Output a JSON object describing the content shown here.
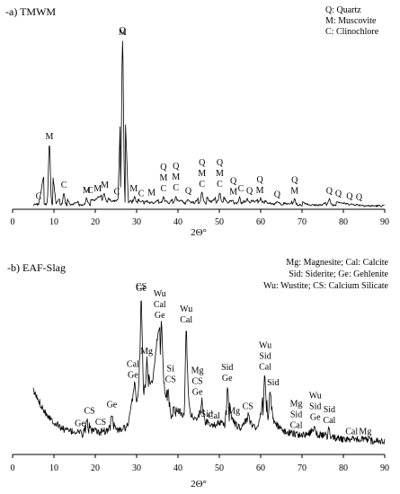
{
  "chart_data": [
    {
      "type": "line",
      "title": "-a) TMWM",
      "xlabel": "2Θ°",
      "ylabel": "",
      "xlim": [
        0,
        90
      ],
      "xticks": [
        0,
        10,
        20,
        30,
        40,
        50,
        60,
        70,
        80,
        90
      ],
      "grid": false,
      "legend_position": "top-right",
      "legend": [
        "Q: Quartz",
        "M: Muscovite",
        "C: Clinochlore"
      ],
      "series": [
        {
          "x": [
            5,
            6.3,
            8.9,
            10.5,
            12.4,
            14,
            17.9,
            19.8,
            20.9,
            22.1,
            24,
            25.5,
            26.6,
            28,
            29.5,
            31,
            32.5,
            34.2,
            36.5,
            37.8,
            39.5,
            40.2,
            42.5,
            44,
            45.8,
            48,
            50.1,
            52,
            54.9,
            55.3,
            56.7,
            58.5,
            60,
            62,
            64,
            67,
            68.2,
            72,
            75,
            76.6,
            80,
            81.5,
            83.8,
            86,
            90
          ],
          "y": [
            2,
            2.5,
            38,
            3,
            9,
            2,
            6,
            4.5,
            7,
            9,
            4,
            5,
            100,
            3.5,
            7,
            4,
            4.5,
            3,
            7,
            3,
            7.5,
            4,
            5.5,
            3,
            9.5,
            3.5,
            9.5,
            3.5,
            7,
            3,
            5.5,
            4,
            6,
            3,
            3.5,
            2.5,
            5.5,
            2,
            2,
            5.5,
            3,
            2.5,
            2,
            1.5,
            1.5
          ]
        }
      ],
      "annotations": [
        {
          "x": 6.3,
          "labels": [
            "C"
          ]
        },
        {
          "x": 8.9,
          "labels": [
            "M"
          ]
        },
        {
          "x": 12.4,
          "labels": [
            "C"
          ]
        },
        {
          "x": 17.9,
          "labels": [
            "M"
          ]
        },
        {
          "x": 18.8,
          "labels": [
            "C"
          ]
        },
        {
          "x": 20.6,
          "labels": [
            "M"
          ]
        },
        {
          "x": 22.3,
          "labels": [
            "M"
          ]
        },
        {
          "x": 25.2,
          "labels": [
            "C"
          ]
        },
        {
          "x": 26.6,
          "labels": [
            "Q",
            "M"
          ]
        },
        {
          "x": 29.3,
          "labels": [
            "M"
          ]
        },
        {
          "x": 31.1,
          "labels": [
            "C"
          ]
        },
        {
          "x": 33.6,
          "labels": [
            "M"
          ]
        },
        {
          "x": 36.5,
          "labels": [
            "Q",
            "M",
            "C"
          ]
        },
        {
          "x": 39.5,
          "labels": [
            "Q",
            "M",
            "C"
          ]
        },
        {
          "x": 42.5,
          "labels": [
            "Q"
          ]
        },
        {
          "x": 45.8,
          "labels": [
            "Q",
            "M",
            "C"
          ]
        },
        {
          "x": 50.1,
          "labels": [
            "Q",
            "M",
            "C"
          ]
        },
        {
          "x": 53.4,
          "labels": [
            "Q",
            "M"
          ]
        },
        {
          "x": 55.2,
          "labels": [
            "C"
          ]
        },
        {
          "x": 57.3,
          "labels": [
            "Q"
          ]
        },
        {
          "x": 59.8,
          "labels": [
            "Q",
            "M"
          ]
        },
        {
          "x": 64,
          "labels": [
            "Q"
          ]
        },
        {
          "x": 68.2,
          "labels": [
            "Q",
            "M"
          ]
        },
        {
          "x": 76.6,
          "labels": [
            "Q"
          ]
        },
        {
          "x": 78.8,
          "labels": [
            "Q"
          ]
        },
        {
          "x": 81.5,
          "labels": [
            "Q"
          ]
        },
        {
          "x": 83.8,
          "labels": [
            "Q"
          ]
        }
      ]
    },
    {
      "type": "line",
      "title": "-b) EAF-Slag",
      "xlabel": "2Θ°",
      "ylabel": "",
      "xlim": [
        0,
        90
      ],
      "xticks": [
        0,
        10,
        20,
        30,
        40,
        50,
        60,
        70,
        80,
        90
      ],
      "grid": false,
      "legend_position": "top-right",
      "legend": [
        "Mg: Magnesite; Cal: Calcite",
        "Sid: Siderite;      Ge: Gehlenite",
        "Wu: Wustite;   CS: Calcium Silicate"
      ],
      "series": [
        {
          "x": [
            5,
            6,
            8,
            10,
            12,
            14,
            16,
            17,
            18,
            19,
            20,
            21,
            22,
            23,
            24,
            25,
            26,
            27,
            28,
            29,
            29.5,
            30,
            30.5,
            31.1,
            31.7,
            32.5,
            33.3,
            34,
            34.6,
            35.2,
            36,
            36.5,
            37,
            37.6,
            38.3,
            39,
            40,
            41,
            41.5,
            42,
            42.5,
            43,
            44,
            45,
            45.8,
            46.5,
            47.5,
            48.5,
            49.5,
            50.5,
            51.3,
            52,
            53,
            54,
            55,
            56.2,
            57,
            58,
            59,
            60,
            61,
            61.8,
            62.3,
            63,
            64,
            65,
            66,
            67,
            68,
            69,
            70,
            71,
            72,
            73,
            73.6,
            74.5,
            75.5,
            76.5,
            77.5,
            78.5,
            80,
            82,
            84,
            85.5,
            87,
            88.5,
            90
          ],
          "y": [
            40,
            35,
            26,
            20,
            16,
            14,
            14,
            12,
            22,
            14,
            15,
            13,
            15,
            14,
            26,
            15,
            15,
            16,
            18,
            35,
            45,
            33,
            40,
            100,
            35,
            60,
            45,
            48,
            65,
            78,
            83,
            48,
            35,
            42,
            22,
            30,
            28,
            25,
            23,
            80,
            40,
            25,
            22,
            24,
            34,
            20,
            20,
            18,
            19,
            20,
            17,
            43,
            22,
            18,
            16,
            20,
            25,
            18,
            16,
            24,
            50,
            22,
            40,
            22,
            18,
            15,
            14,
            13,
            13,
            12,
            12,
            12,
            13,
            18,
            12,
            12,
            11,
            16,
            10,
            10,
            9,
            9,
            9,
            9,
            8,
            8,
            8
          ]
        }
      ],
      "annotations": [
        {
          "x": 16.3,
          "labels": [
            "Ge"
          ]
        },
        {
          "x": 18.6,
          "labels": [
            "CS"
          ]
        },
        {
          "x": 21.3,
          "labels": [
            "CS"
          ]
        },
        {
          "x": 24.0,
          "labels": [
            "Ge"
          ]
        },
        {
          "x": 29.1,
          "labels": [
            "Cal",
            "Ge"
          ]
        },
        {
          "x": 31.1,
          "labels": [
            "CS",
            "Ge"
          ]
        },
        {
          "x": 32.4,
          "labels": [
            "Mg"
          ]
        },
        {
          "x": 35.6,
          "labels": [
            "Wu",
            "Cal",
            "Ge"
          ]
        },
        {
          "x": 42.0,
          "labels": [
            "Wu",
            "Cal"
          ]
        },
        {
          "x": 38.2,
          "labels": [
            "Si",
            "CS"
          ]
        },
        {
          "x": 44.7,
          "labels": [
            "Mg",
            "CS",
            "Ge"
          ]
        },
        {
          "x": 47.0,
          "labels": [
            "Sid"
          ]
        },
        {
          "x": 48.7,
          "labels": [
            "Cal"
          ]
        },
        {
          "x": 51.9,
          "labels": [
            "Sid",
            "Ge"
          ]
        },
        {
          "x": 53.5,
          "labels": [
            "Mg"
          ]
        },
        {
          "x": 56.9,
          "labels": [
            "CS"
          ]
        },
        {
          "x": 61.1,
          "labels": [
            "Wu",
            "Sid",
            "Cal"
          ]
        },
        {
          "x": 63.0,
          "labels": [
            "Sid"
          ]
        },
        {
          "x": 68.6,
          "labels": [
            "Mg",
            "Sid",
            "Cal"
          ]
        },
        {
          "x": 73.2,
          "labels": [
            "Wu",
            "Sid",
            "Ge"
          ]
        },
        {
          "x": 76.6,
          "labels": [
            "Sid",
            "Cal"
          ]
        },
        {
          "x": 82.0,
          "labels": [
            "Cal"
          ]
        },
        {
          "x": 85.3,
          "labels": [
            "Mg"
          ]
        }
      ]
    }
  ]
}
